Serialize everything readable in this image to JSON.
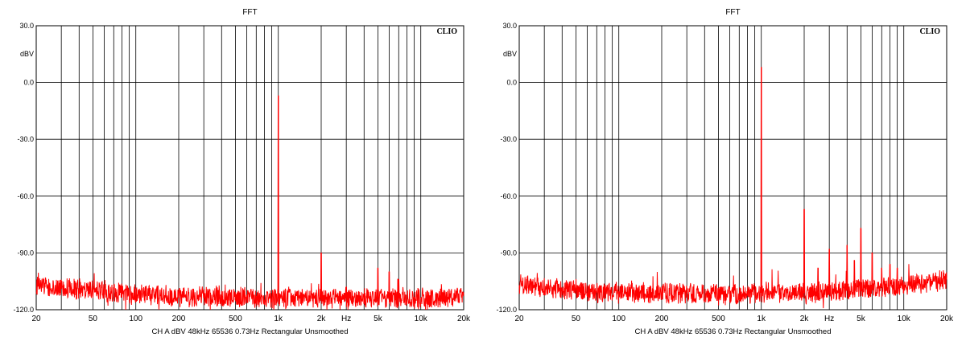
{
  "chart_data": [
    {
      "type": "line",
      "title": "FFT",
      "brand": "CLIO",
      "ylabel": "dBV",
      "xlabel": "Hz",
      "xscale": "log",
      "xlim": [
        20,
        20000
      ],
      "ylim": [
        -120,
        30
      ],
      "grid": true,
      "x_tick_labels": [
        {
          "x": 20,
          "label": "20"
        },
        {
          "x": 50,
          "label": "50"
        },
        {
          "x": 100,
          "label": "100"
        },
        {
          "x": 200,
          "label": "200"
        },
        {
          "x": 500,
          "label": "500"
        },
        {
          "x": 1000,
          "label": "1k"
        },
        {
          "x": 2000,
          "label": "2k"
        },
        {
          "x": 5000,
          "label": "5k"
        },
        {
          "x": 10000,
          "label": "10k"
        },
        {
          "x": 20000,
          "label": "20k"
        }
      ],
      "y_tick_labels": [
        {
          "y": 30,
          "label": "30.0"
        },
        {
          "y": 0,
          "label": "0.0"
        },
        {
          "y": -30,
          "label": "-30.0"
        },
        {
          "y": -60,
          "label": "-60.0"
        },
        {
          "y": -90,
          "label": "-90.0"
        },
        {
          "y": -120,
          "label": "-120.0"
        }
      ],
      "footer": "CH A   dBV   48kHz   65536   0.73Hz   Rectangular   Unsmoothed",
      "series": [
        {
          "color": "#ff0000",
          "noise_floor": [
            {
              "x": 20,
              "y": -107
            },
            {
              "x": 30,
              "y": -108
            },
            {
              "x": 50,
              "y": -110
            },
            {
              "x": 100,
              "y": -112
            },
            {
              "x": 200,
              "y": -113
            },
            {
              "x": 500,
              "y": -113
            },
            {
              "x": 1000,
              "y": -114
            },
            {
              "x": 2000,
              "y": -114
            },
            {
              "x": 5000,
              "y": -114
            },
            {
              "x": 10000,
              "y": -114
            },
            {
              "x": 20000,
              "y": -113
            }
          ],
          "peaks": [
            {
              "x": 1000,
              "y": -7
            },
            {
              "x": 2000,
              "y": -90
            },
            {
              "x": 3000,
              "y": -108
            },
            {
              "x": 5000,
              "y": -98
            },
            {
              "x": 6000,
              "y": -100
            },
            {
              "x": 7000,
              "y": -104
            }
          ]
        }
      ]
    },
    {
      "type": "line",
      "title": "FFT",
      "brand": "CLIO",
      "ylabel": "dBV",
      "xlabel": "Hz",
      "xscale": "log",
      "xlim": [
        20,
        20000
      ],
      "ylim": [
        -120,
        30
      ],
      "grid": true,
      "x_tick_labels": [
        {
          "x": 20,
          "label": "20"
        },
        {
          "x": 50,
          "label": "50"
        },
        {
          "x": 100,
          "label": "100"
        },
        {
          "x": 200,
          "label": "200"
        },
        {
          "x": 500,
          "label": "500"
        },
        {
          "x": 1000,
          "label": "1k"
        },
        {
          "x": 2000,
          "label": "2k"
        },
        {
          "x": 5000,
          "label": "5k"
        },
        {
          "x": 10000,
          "label": "10k"
        },
        {
          "x": 20000,
          "label": "20k"
        }
      ],
      "y_tick_labels": [
        {
          "y": 30,
          "label": "30.0"
        },
        {
          "y": 0,
          "label": "0.0"
        },
        {
          "y": -30,
          "label": "-30.0"
        },
        {
          "y": -60,
          "label": "-60.0"
        },
        {
          "y": -90,
          "label": "-90.0"
        },
        {
          "y": -120,
          "label": "-120.0"
        }
      ],
      "footer": "CH A   dBV   48kHz   65536   0.73Hz   Rectangular   Unsmoothed",
      "series": [
        {
          "color": "#ff0000",
          "noise_floor": [
            {
              "x": 20,
              "y": -107
            },
            {
              "x": 30,
              "y": -108
            },
            {
              "x": 50,
              "y": -110
            },
            {
              "x": 100,
              "y": -111
            },
            {
              "x": 200,
              "y": -111
            },
            {
              "x": 500,
              "y": -112
            },
            {
              "x": 1000,
              "y": -111
            },
            {
              "x": 2000,
              "y": -111
            },
            {
              "x": 5000,
              "y": -109
            },
            {
              "x": 10000,
              "y": -107
            },
            {
              "x": 20000,
              "y": -104
            }
          ],
          "peaks": [
            {
              "x": 1000,
              "y": 8
            },
            {
              "x": 2000,
              "y": -67
            },
            {
              "x": 2500,
              "y": -98
            },
            {
              "x": 3000,
              "y": -88
            },
            {
              "x": 4000,
              "y": -86
            },
            {
              "x": 4500,
              "y": -94
            },
            {
              "x": 5000,
              "y": -77
            },
            {
              "x": 6000,
              "y": -90
            },
            {
              "x": 7000,
              "y": -98
            },
            {
              "x": 8000,
              "y": -96
            },
            {
              "x": 9000,
              "y": -98
            }
          ]
        }
      ]
    }
  ]
}
